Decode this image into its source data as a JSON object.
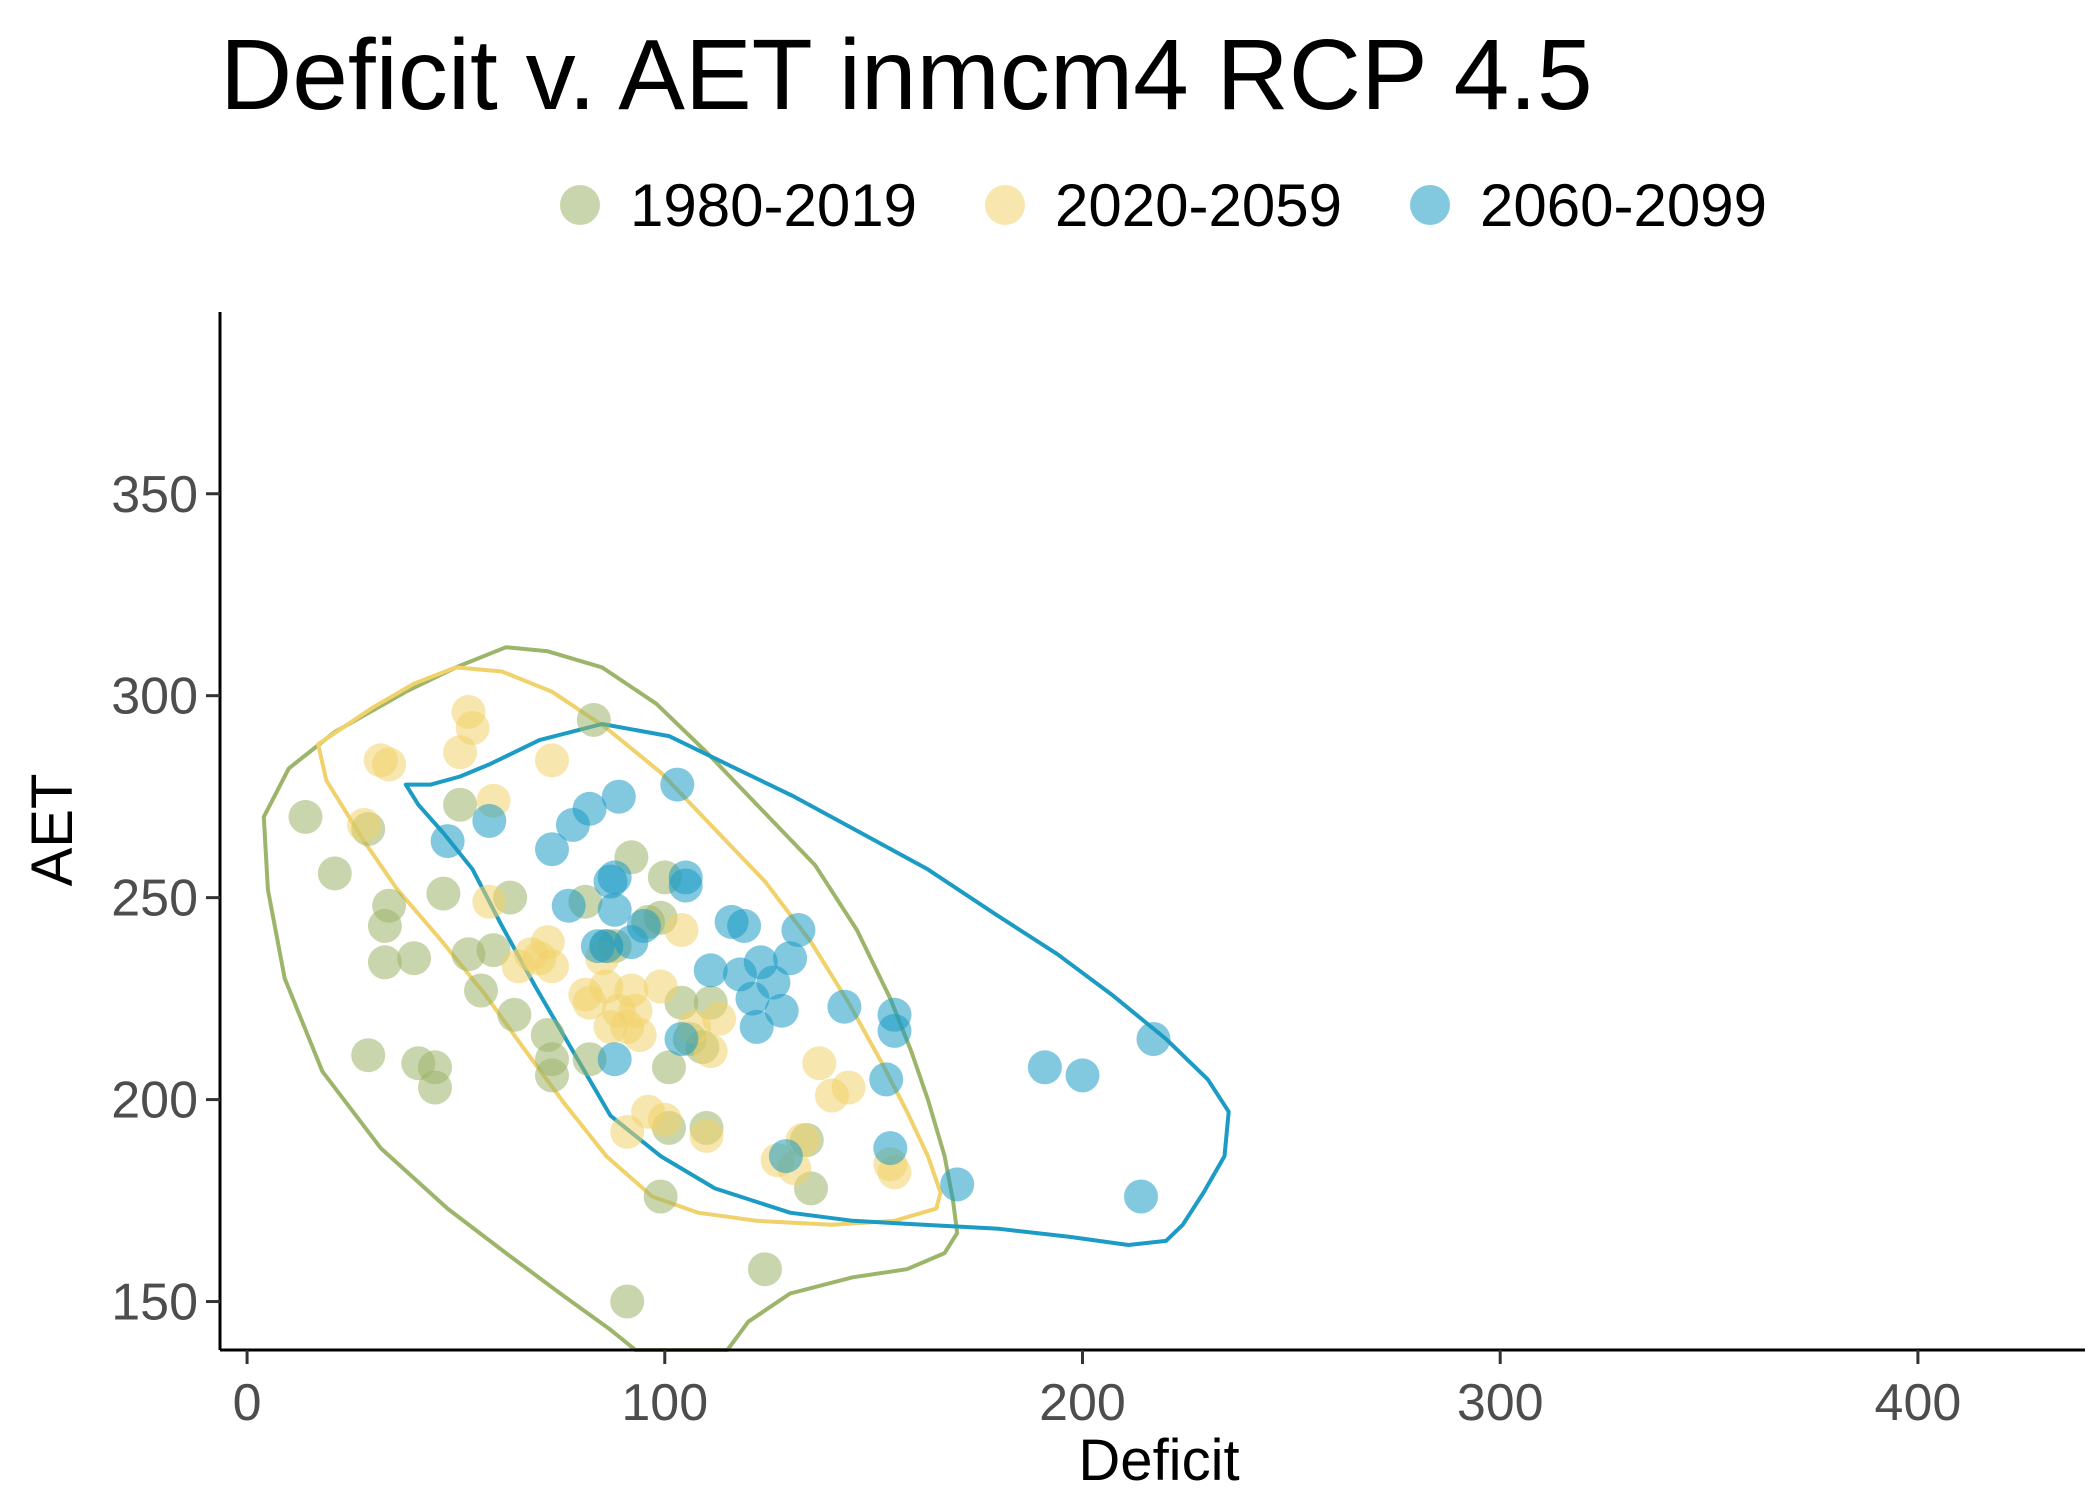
{
  "chart_data": {
    "type": "scatter",
    "title": "Deficit v. AET inmcm4 RCP 4.5",
    "xlabel": "Deficit",
    "ylabel": "AET",
    "xlim": [
      -6,
      440
    ],
    "ylim": [
      138,
      395
    ],
    "x_ticks": [
      0,
      100,
      200,
      300,
      400
    ],
    "y_ticks": [
      150,
      200,
      250,
      300,
      350
    ],
    "grid": false,
    "legend_position": "top",
    "series": [
      {
        "name": "1980-2019",
        "color": "#9cb56a",
        "points": [
          [
            14,
            270
          ],
          [
            21,
            256
          ],
          [
            29,
            267
          ],
          [
            33,
            243
          ],
          [
            34,
            248
          ],
          [
            33,
            234
          ],
          [
            40,
            235
          ],
          [
            29,
            211
          ],
          [
            41,
            209
          ],
          [
            45,
            208
          ],
          [
            45,
            203
          ],
          [
            47,
            251
          ],
          [
            51,
            273
          ],
          [
            53,
            236
          ],
          [
            56,
            227
          ],
          [
            59,
            237
          ],
          [
            63,
            250
          ],
          [
            64,
            221
          ],
          [
            72,
            216
          ],
          [
            73,
            210
          ],
          [
            73,
            206
          ],
          [
            81,
            249
          ],
          [
            82,
            210
          ],
          [
            83,
            294
          ],
          [
            86,
            238
          ],
          [
            88,
            238
          ],
          [
            92,
            260
          ],
          [
            96,
            244
          ],
          [
            99,
            245
          ],
          [
            100,
            255
          ],
          [
            101,
            208
          ],
          [
            101,
            193
          ],
          [
            99,
            176
          ],
          [
            91,
            150
          ],
          [
            104,
            224
          ],
          [
            106,
            215
          ],
          [
            109,
            213
          ],
          [
            110,
            193
          ],
          [
            111,
            224
          ],
          [
            124,
            158
          ],
          [
            134,
            190
          ],
          [
            135,
            178
          ]
        ]
      },
      {
        "name": "2020-2059",
        "color": "#f0d16a",
        "points": [
          [
            28,
            268
          ],
          [
            32,
            284
          ],
          [
            34,
            283
          ],
          [
            51,
            286
          ],
          [
            53,
            296
          ],
          [
            54,
            292
          ],
          [
            58,
            249
          ],
          [
            59,
            274
          ],
          [
            65,
            233
          ],
          [
            68,
            236
          ],
          [
            70,
            235
          ],
          [
            72,
            239
          ],
          [
            73,
            233
          ],
          [
            73,
            284
          ],
          [
            81,
            226
          ],
          [
            82,
            224
          ],
          [
            85,
            235
          ],
          [
            86,
            228
          ],
          [
            87,
            218
          ],
          [
            89,
            222
          ],
          [
            91,
            218
          ],
          [
            91,
            192
          ],
          [
            92,
            227
          ],
          [
            93,
            222
          ],
          [
            94,
            216
          ],
          [
            96,
            197
          ],
          [
            99,
            228
          ],
          [
            100,
            195
          ],
          [
            104,
            242
          ],
          [
            107,
            218
          ],
          [
            111,
            212
          ],
          [
            113,
            220
          ],
          [
            110,
            191
          ],
          [
            127,
            185
          ],
          [
            131,
            183
          ],
          [
            133,
            190
          ],
          [
            137,
            209
          ],
          [
            140,
            201
          ],
          [
            144,
            203
          ],
          [
            154,
            184
          ],
          [
            155,
            182
          ]
        ]
      },
      {
        "name": "2060-2099",
        "color": "#1c9bc4",
        "points": [
          [
            48,
            264
          ],
          [
            58,
            269
          ],
          [
            73,
            262
          ],
          [
            77,
            248
          ],
          [
            78,
            268
          ],
          [
            82,
            272
          ],
          [
            87,
            254
          ],
          [
            88,
            247
          ],
          [
            88,
            255
          ],
          [
            89,
            275
          ],
          [
            88,
            210
          ],
          [
            84,
            238
          ],
          [
            86,
            238
          ],
          [
            92,
            239
          ],
          [
            95,
            243
          ],
          [
            103,
            278
          ],
          [
            105,
            255
          ],
          [
            105,
            253
          ],
          [
            104,
            215
          ],
          [
            116,
            244
          ],
          [
            111,
            232
          ],
          [
            118,
            231
          ],
          [
            119,
            243
          ],
          [
            121,
            225
          ],
          [
            122,
            218
          ],
          [
            123,
            234
          ],
          [
            126,
            229
          ],
          [
            128,
            222
          ],
          [
            130,
            235
          ],
          [
            132,
            242
          ],
          [
            129,
            186
          ],
          [
            143,
            223
          ],
          [
            153,
            205
          ],
          [
            154,
            188
          ],
          [
            155,
            217
          ],
          [
            155,
            221
          ],
          [
            170,
            179
          ],
          [
            191,
            208
          ],
          [
            200,
            206
          ],
          [
            214,
            176
          ],
          [
            217,
            215
          ]
        ]
      }
    ],
    "contours": [
      {
        "series": "1980-2019",
        "points": [
          [
            62,
            312
          ],
          [
            72,
            311
          ],
          [
            85,
            307
          ],
          [
            98,
            298
          ],
          [
            110,
            286
          ],
          [
            123,
            272
          ],
          [
            136,
            258
          ],
          [
            146,
            242
          ],
          [
            154,
            225
          ],
          [
            159,
            212
          ],
          [
            163,
            200
          ],
          [
            167,
            186
          ],
          [
            169,
            175
          ],
          [
            170,
            167
          ],
          [
            167,
            162
          ],
          [
            158,
            158
          ],
          [
            145,
            156
          ],
          [
            130,
            152
          ],
          [
            120,
            145
          ],
          [
            115,
            138
          ],
          [
            93,
            138
          ],
          [
            87,
            143
          ],
          [
            75,
            152
          ],
          [
            62,
            162
          ],
          [
            48,
            173
          ],
          [
            32,
            188
          ],
          [
            18,
            207
          ],
          [
            9,
            230
          ],
          [
            5,
            252
          ],
          [
            4,
            270
          ],
          [
            10,
            282
          ],
          [
            21,
            291
          ],
          [
            38,
            301
          ],
          [
            50,
            307
          ]
        ]
      },
      {
        "series": "2020-2059",
        "points": [
          [
            50,
            307
          ],
          [
            61,
            306
          ],
          [
            73,
            301
          ],
          [
            86,
            292
          ],
          [
            99,
            281
          ],
          [
            111,
            268
          ],
          [
            124,
            254
          ],
          [
            135,
            239
          ],
          [
            144,
            224
          ],
          [
            152,
            209
          ],
          [
            158,
            197
          ],
          [
            163,
            186
          ],
          [
            166,
            177
          ],
          [
            165,
            173
          ],
          [
            155,
            170
          ],
          [
            140,
            169
          ],
          [
            122,
            170
          ],
          [
            108,
            172
          ],
          [
            97,
            176
          ],
          [
            86,
            186
          ],
          [
            76,
            199
          ],
          [
            66,
            213
          ],
          [
            57,
            226
          ],
          [
            46,
            240
          ],
          [
            36,
            252
          ],
          [
            28,
            264
          ],
          [
            19,
            279
          ],
          [
            17,
            288
          ],
          [
            30,
            297
          ],
          [
            40,
            303
          ]
        ]
      },
      {
        "series": "2060-2099",
        "points": [
          [
            58,
            283
          ],
          [
            70,
            289
          ],
          [
            85,
            293
          ],
          [
            101,
            290
          ],
          [
            115,
            283
          ],
          [
            131,
            275
          ],
          [
            147,
            266
          ],
          [
            163,
            257
          ],
          [
            179,
            246
          ],
          [
            194,
            236
          ],
          [
            207,
            226
          ],
          [
            220,
            215
          ],
          [
            230,
            205
          ],
          [
            235,
            197
          ],
          [
            234,
            186
          ],
          [
            229,
            177
          ],
          [
            224,
            169
          ],
          [
            220,
            165
          ],
          [
            211,
            164
          ],
          [
            197,
            166
          ],
          [
            180,
            168
          ],
          [
            162,
            169
          ],
          [
            145,
            170
          ],
          [
            130,
            172
          ],
          [
            112,
            178
          ],
          [
            99,
            186
          ],
          [
            87,
            196
          ],
          [
            78,
            212
          ],
          [
            69,
            228
          ],
          [
            61,
            243
          ],
          [
            54,
            257
          ],
          [
            47,
            266
          ],
          [
            41,
            273
          ],
          [
            38,
            278
          ],
          [
            44,
            278
          ],
          [
            51,
            280
          ]
        ]
      }
    ]
  }
}
